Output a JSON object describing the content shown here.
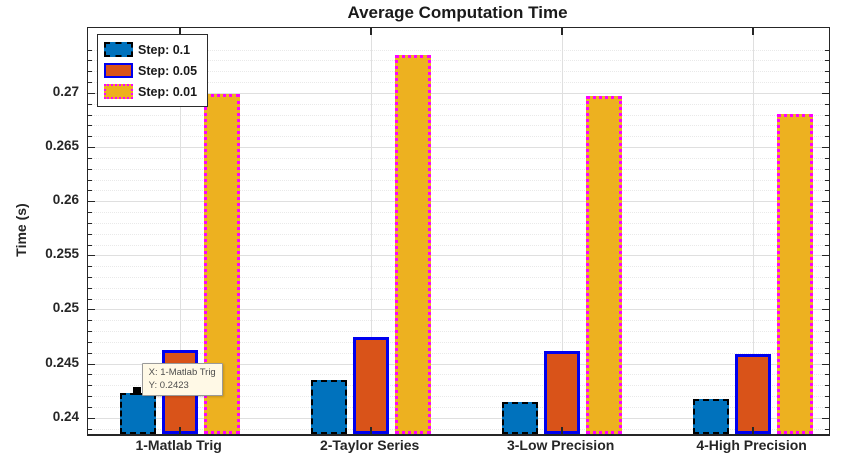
{
  "figure": {
    "title": "Average Computation Time"
  },
  "axes": {
    "ylabel": "Time (s)"
  },
  "tooltip": {
    "line1": "X: 1-Matlab Trig",
    "line2": "Y: 0.2423"
  },
  "colors": {
    "series_blue_fill": "#0072BD",
    "series_blue_edge": "#000000",
    "series_orange_fill": "#D95319",
    "series_orange_edge": "#0000EE",
    "series_yellow_fill": "#EDB120",
    "series_yellow_edge": "#FF00FF",
    "grid_major": "#DFDFDF",
    "grid_minor": "#E9E9E9",
    "axis_text": "#262626",
    "tooltip_bg": "#FFF9E6"
  },
  "chart_data": {
    "type": "bar",
    "title": "Average Computation Time",
    "categories": [
      "1-Matlab Trig",
      "2-Taylor Series",
      "3-Low Precision",
      "4-High Precision"
    ],
    "series": [
      {
        "name": "Step: 0.1",
        "values": [
          0.2423,
          0.2435,
          0.2415,
          0.2417
        ],
        "fill": "#0072BD",
        "edge_color": "#000000",
        "edge_style": "dashed"
      },
      {
        "name": "Step: 0.05",
        "values": [
          0.2463,
          0.2475,
          0.2462,
          0.2459
        ],
        "fill": "#D95319",
        "edge_color": "#0000EE",
        "edge_style": "solid"
      },
      {
        "name": "Step: 0.01",
        "values": [
          0.2699,
          0.2735,
          0.2697,
          0.2681
        ],
        "fill": "#EDB120",
        "edge_color": "#FF00FF",
        "edge_style": "dotted"
      }
    ],
    "xlabel": "",
    "ylabel": "Time (s)",
    "ylim": [
      0.2385,
      0.276
    ],
    "xlim": [
      0.52,
      4.4
    ],
    "yticks": [
      0.24,
      0.245,
      0.25,
      0.255,
      0.26,
      0.265,
      0.27
    ],
    "yticklabels": [
      "0.24",
      "0.245",
      "0.25",
      "0.255",
      "0.26",
      "0.265",
      "0.27"
    ],
    "grid": true,
    "minor_grid": true,
    "legend_position": "top-left",
    "annotation": {
      "series": "Step: 0.1",
      "category": "1-Matlab Trig",
      "label_x": "X: 1-Matlab Trig",
      "label_y": "Y: 0.2423",
      "value": 0.2423
    }
  }
}
